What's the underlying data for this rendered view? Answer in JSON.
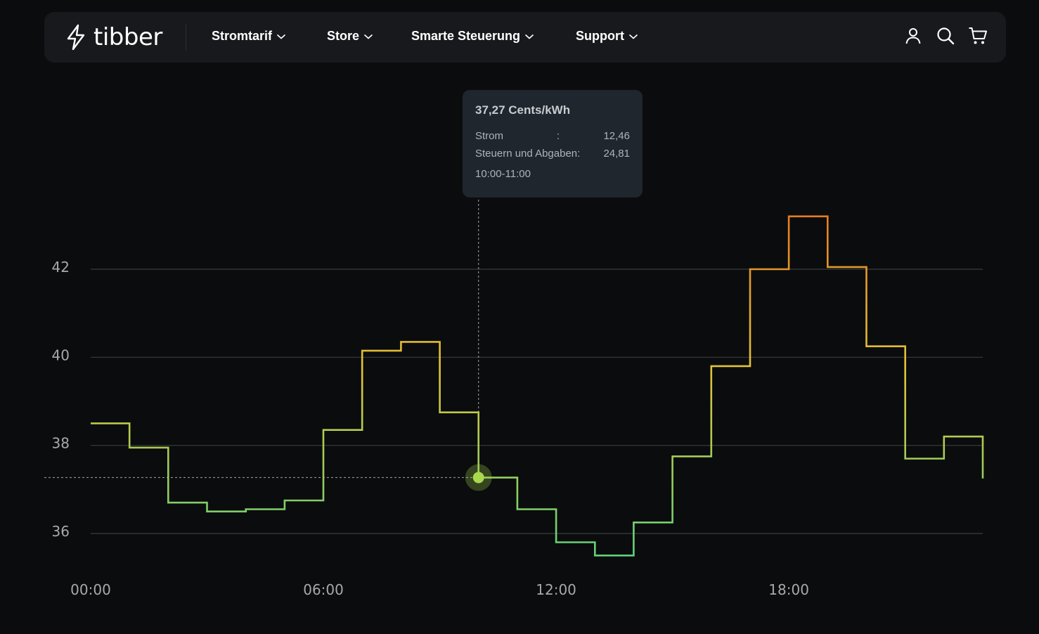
{
  "nav": {
    "logo_text": "tibber",
    "items": [
      {
        "label": "Stromtarif"
      },
      {
        "label": "Store"
      },
      {
        "label": "Smarte Steuerung"
      },
      {
        "label": "Support"
      }
    ],
    "icons": [
      "user-icon",
      "search-icon",
      "cart-icon"
    ]
  },
  "tooltip": {
    "title": "37,27 Cents/kWh",
    "rows": [
      {
        "label": "Strom",
        "separator": ":",
        "value": "12,46"
      },
      {
        "label": "Steuern und Abgaben:",
        "separator": "",
        "value": "24,81"
      }
    ],
    "time": "10:00-11:00"
  },
  "chart_data": {
    "type": "line",
    "step": true,
    "x": [
      0,
      1,
      2,
      3,
      4,
      5,
      6,
      7,
      8,
      9,
      10,
      11,
      12,
      13,
      14,
      15,
      16,
      17,
      18,
      19,
      20,
      21,
      22,
      23
    ],
    "x_ticks": [
      "00:00",
      "06:00",
      "12:00",
      "18:00"
    ],
    "x_tick_values": [
      0,
      6,
      12,
      18
    ],
    "series": [
      {
        "values": [
          38.5,
          37.95,
          36.7,
          36.5,
          36.55,
          36.75,
          38.35,
          40.15,
          40.35,
          38.75,
          37.27,
          36.55,
          35.8,
          35.5,
          36.25,
          37.75,
          39.8,
          42.0,
          43.2,
          42.05,
          40.25,
          37.7,
          38.2,
          37.25
        ]
      }
    ],
    "y_ticks": [
      36,
      38,
      40,
      42
    ],
    "ylim": [
      34.8,
      44.2
    ],
    "xlim": [
      0,
      23
    ],
    "grid": true,
    "highlight_index": 10,
    "colors": {
      "low": "#5fd37a",
      "mid": "#e2c437",
      "high": "#e47b22",
      "grid": "#3a3d40",
      "marker": "#a8d84e"
    }
  }
}
